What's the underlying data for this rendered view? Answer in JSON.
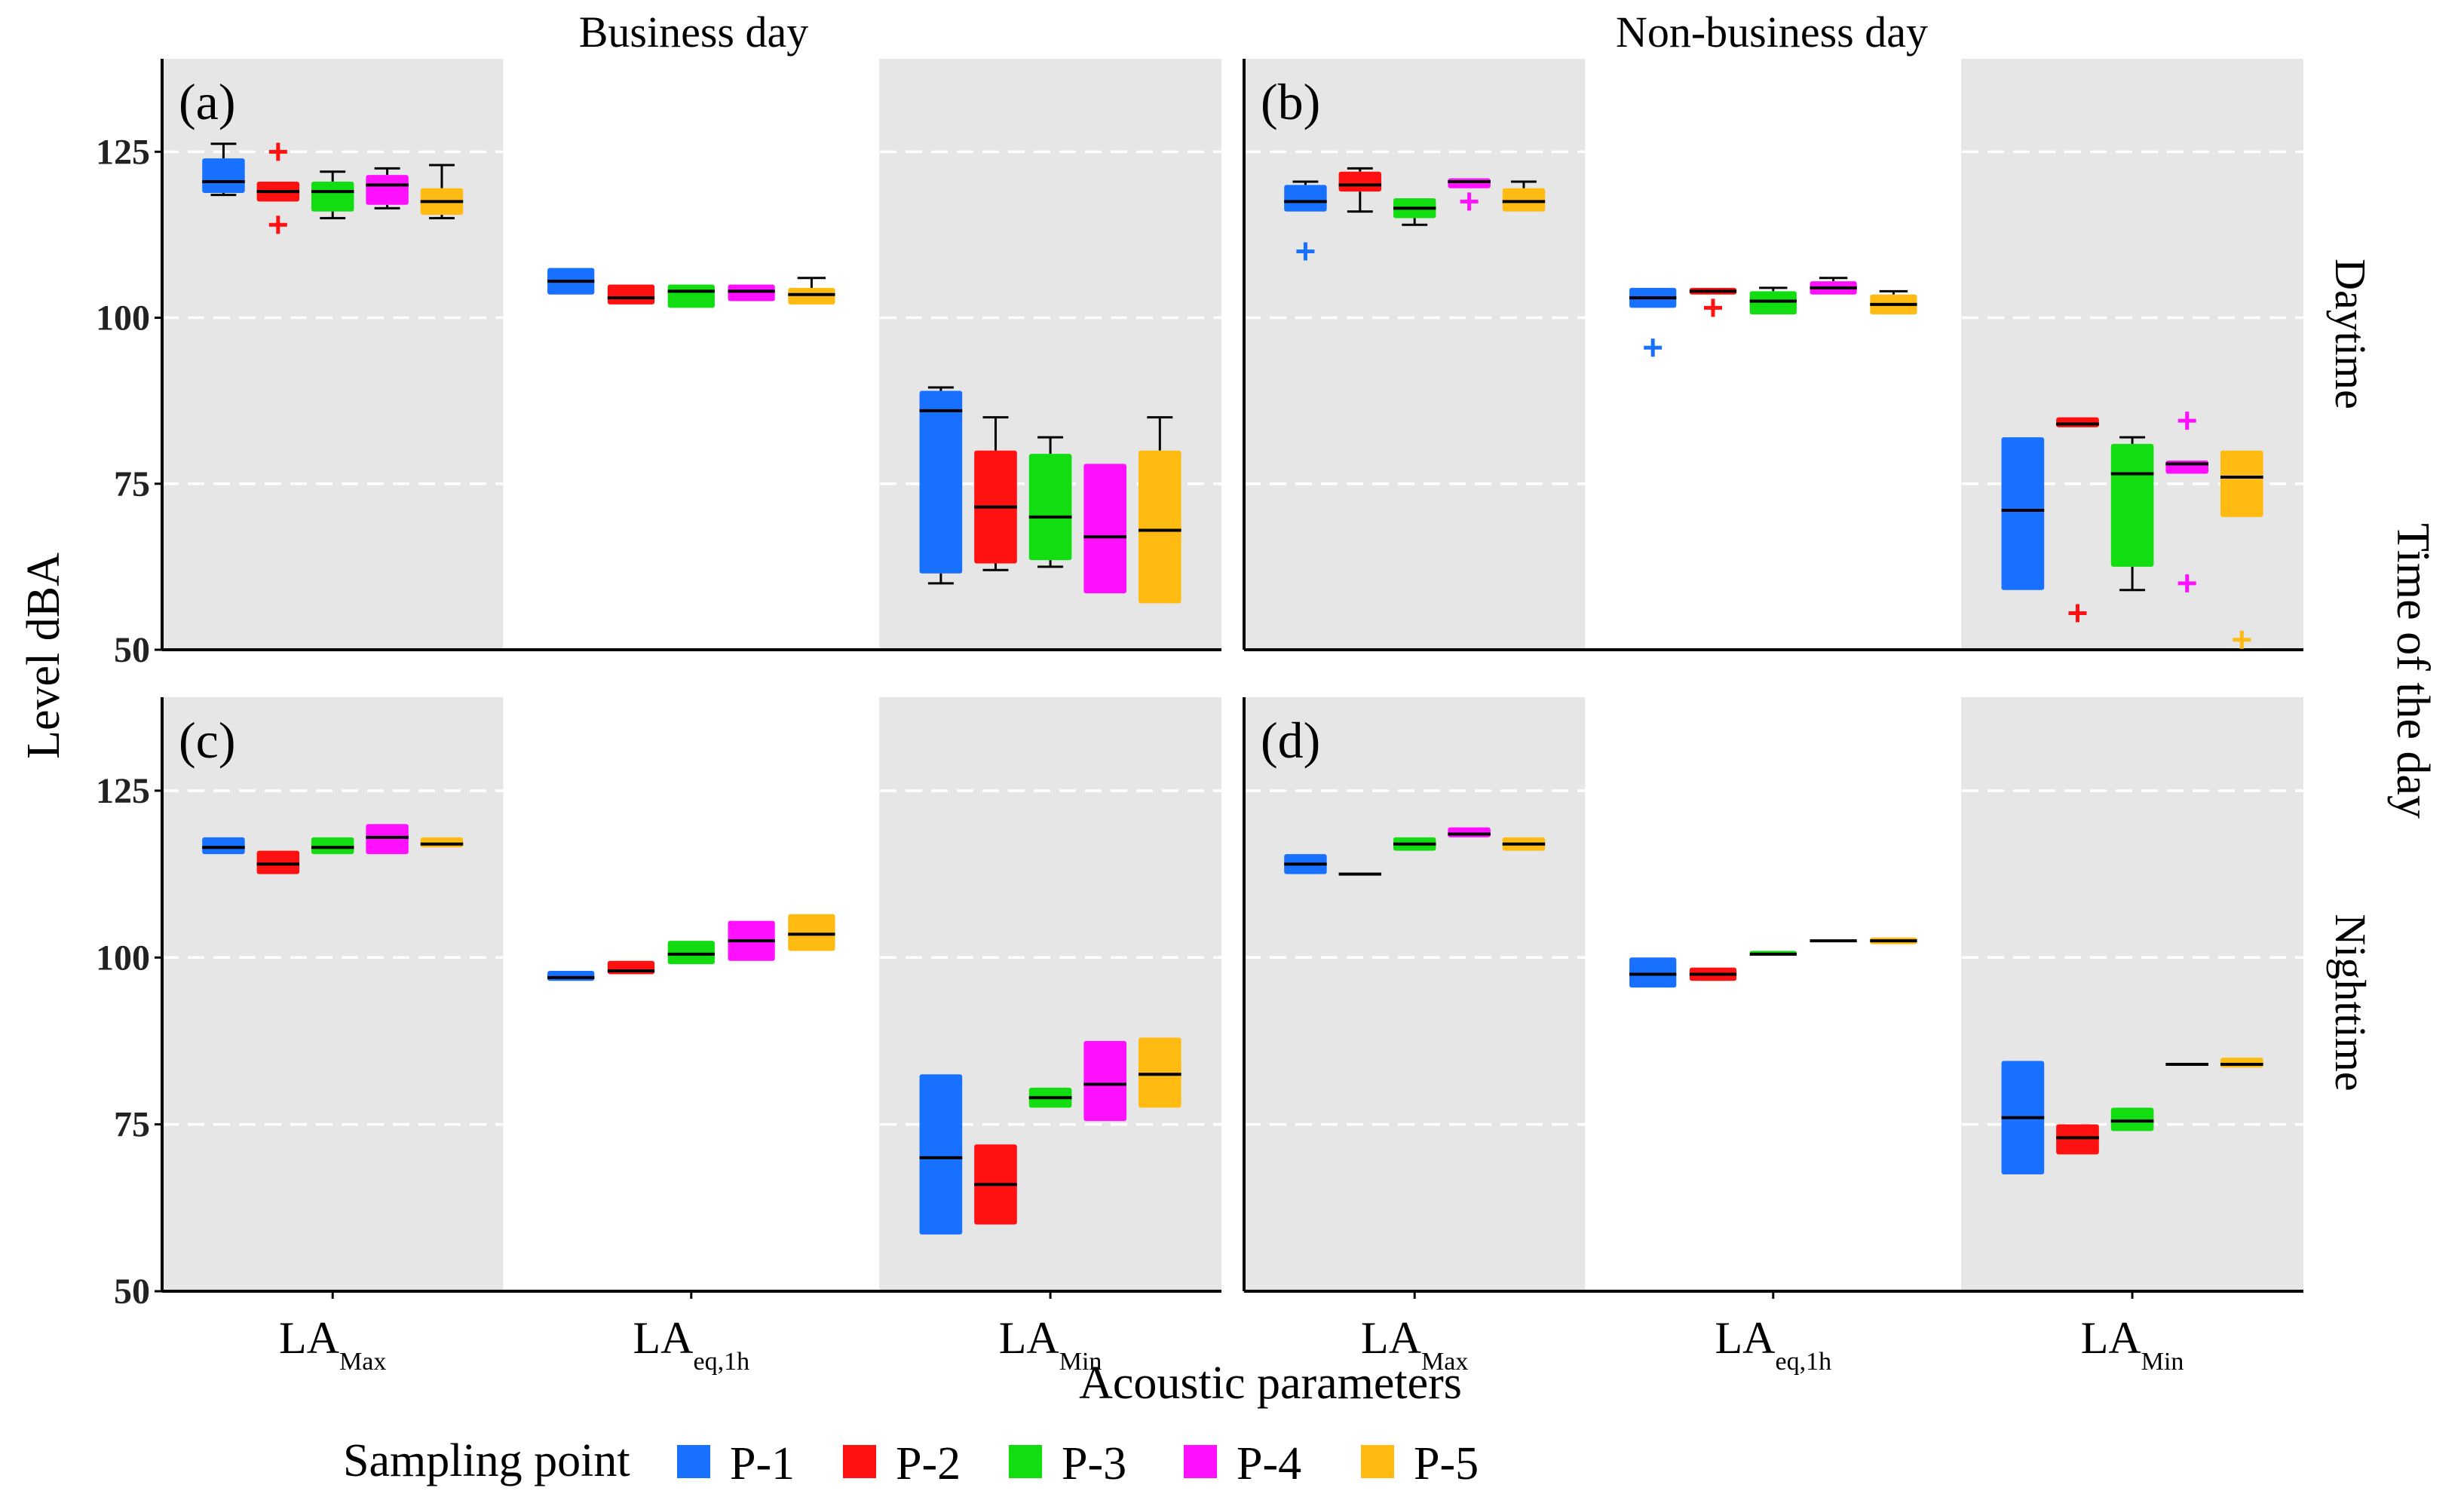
{
  "chart_data": {
    "type": "boxplot",
    "column_titles": [
      "Business day",
      "Non-business day"
    ],
    "row_titles": [
      "Daytime",
      "Nighttime"
    ],
    "strip_title": "Time of the day",
    "ylabel": "Level dBA",
    "xlabel": "Acoustic parameters",
    "y_ticks": [
      50,
      75,
      100,
      125
    ],
    "ylim": [
      50,
      139
    ],
    "categories": [
      {
        "main": "LA",
        "sub": "Max"
      },
      {
        "main": "LA",
        "sub": "eq,1h"
      },
      {
        "main": "LA",
        "sub": "Min"
      }
    ],
    "legend": {
      "title": "Sampling point",
      "items": [
        {
          "name": "P-1",
          "color": "#1770ff"
        },
        {
          "name": "P-2",
          "color": "#ff1111"
        },
        {
          "name": "P-3",
          "color": "#11dd11"
        },
        {
          "name": "P-4",
          "color": "#ff11ff"
        },
        {
          "name": "P-5",
          "color": "#ffbb11"
        }
      ]
    },
    "panels": [
      {
        "label": "(a)",
        "column": "Business day",
        "row": "Daytime",
        "groups": [
          [
            {
              "q1": 118.8,
              "median": 120.5,
              "q3": 124.0,
              "low": 118.5,
              "high": 126.2,
              "outliers": []
            },
            {
              "q1": 117.5,
              "median": 119.0,
              "q3": 120.5,
              "low": 117.5,
              "high": 120.5,
              "outliers": [
                125.0,
                114.0
              ]
            },
            {
              "q1": 116.0,
              "median": 119.0,
              "q3": 120.5,
              "low": 115.0,
              "high": 122.0,
              "outliers": []
            },
            {
              "q1": 117.0,
              "median": 120.0,
              "q3": 121.5,
              "low": 116.5,
              "high": 122.5,
              "outliers": []
            },
            {
              "q1": 115.5,
              "median": 117.5,
              "q3": 119.5,
              "low": 115.0,
              "high": 123.0,
              "outliers": []
            }
          ],
          [
            {
              "q1": 103.5,
              "median": 105.5,
              "q3": 107.5,
              "low": 103.5,
              "high": 107.5,
              "outliers": []
            },
            {
              "q1": 102.0,
              "median": 103.0,
              "q3": 105.0,
              "low": 102.0,
              "high": 105.0,
              "outliers": []
            },
            {
              "q1": 101.5,
              "median": 104.0,
              "q3": 105.0,
              "low": 101.5,
              "high": 105.0,
              "outliers": []
            },
            {
              "q1": 102.5,
              "median": 104.0,
              "q3": 105.0,
              "low": 102.5,
              "high": 105.0,
              "outliers": []
            },
            {
              "q1": 102.0,
              "median": 103.5,
              "q3": 104.5,
              "low": 102.0,
              "high": 106.0,
              "outliers": []
            }
          ],
          [
            {
              "q1": 61.5,
              "median": 86.0,
              "q3": 89.0,
              "low": 60.0,
              "high": 89.5,
              "outliers": []
            },
            {
              "q1": 63.0,
              "median": 71.5,
              "q3": 80.0,
              "low": 62.0,
              "high": 85.0,
              "outliers": []
            },
            {
              "q1": 63.5,
              "median": 70.0,
              "q3": 79.5,
              "low": 62.5,
              "high": 82.0,
              "outliers": []
            },
            {
              "q1": 58.5,
              "median": 67.0,
              "q3": 78.0,
              "low": 58.5,
              "high": 78.0,
              "outliers": []
            },
            {
              "q1": 57.0,
              "median": 68.0,
              "q3": 80.0,
              "low": 57.0,
              "high": 85.0,
              "outliers": []
            }
          ]
        ]
      },
      {
        "label": "(b)",
        "column": "Non-business day",
        "row": "Daytime",
        "groups": [
          [
            {
              "q1": 116.0,
              "median": 117.5,
              "q3": 120.0,
              "low": 116.0,
              "high": 120.5,
              "outliers": [
                110.0
              ]
            },
            {
              "q1": 119.0,
              "median": 120.0,
              "q3": 122.0,
              "low": 116.0,
              "high": 122.5,
              "outliers": []
            },
            {
              "q1": 115.0,
              "median": 116.5,
              "q3": 118.0,
              "low": 114.0,
              "high": 118.0,
              "outliers": []
            },
            {
              "q1": 119.5,
              "median": 120.5,
              "q3": 121.0,
              "low": 119.5,
              "high": 121.0,
              "outliers": [
                117.5
              ]
            },
            {
              "q1": 116.0,
              "median": 117.5,
              "q3": 119.5,
              "low": 116.0,
              "high": 120.5,
              "outliers": []
            }
          ],
          [
            {
              "q1": 101.5,
              "median": 103.0,
              "q3": 104.5,
              "low": 101.5,
              "high": 104.5,
              "outliers": [
                95.5
              ]
            },
            {
              "q1": 103.5,
              "median": 104.0,
              "q3": 104.5,
              "low": 103.5,
              "high": 104.5,
              "outliers": [
                101.5
              ]
            },
            {
              "q1": 100.5,
              "median": 102.5,
              "q3": 104.0,
              "low": 100.5,
              "high": 104.5,
              "outliers": []
            },
            {
              "q1": 103.5,
              "median": 104.5,
              "q3": 105.5,
              "low": 103.5,
              "high": 106.0,
              "outliers": []
            },
            {
              "q1": 100.5,
              "median": 102.0,
              "q3": 103.5,
              "low": 100.5,
              "high": 104.0,
              "outliers": []
            }
          ],
          [
            {
              "q1": 59.0,
              "median": 71.0,
              "q3": 82.0,
              "low": 59.0,
              "high": 82.0,
              "outliers": []
            },
            {
              "q1": 83.5,
              "median": 84.0,
              "q3": 85.0,
              "low": 83.5,
              "high": 85.0,
              "outliers": [
                55.5
              ]
            },
            {
              "q1": 62.5,
              "median": 76.5,
              "q3": 81.0,
              "low": 59.0,
              "high": 82.0,
              "outliers": []
            },
            {
              "q1": 76.5,
              "median": 78.0,
              "q3": 78.5,
              "low": 76.5,
              "high": 78.5,
              "outliers": [
                84.5,
                60.0
              ]
            },
            {
              "q1": 70.0,
              "median": 76.0,
              "q3": 80.0,
              "low": 70.0,
              "high": 80.0,
              "outliers": [
                51.5
              ]
            }
          ]
        ]
      },
      {
        "label": "(c)",
        "column": "Business day",
        "row": "Nighttime",
        "groups": [
          [
            {
              "q1": 115.5,
              "median": 116.5,
              "q3": 118.0,
              "low": 115.5,
              "high": 118.0,
              "outliers": []
            },
            {
              "q1": 112.5,
              "median": 114.0,
              "q3": 116.0,
              "low": 112.5,
              "high": 116.0,
              "outliers": []
            },
            {
              "q1": 115.5,
              "median": 116.5,
              "q3": 118.0,
              "low": 115.5,
              "high": 118.0,
              "outliers": []
            },
            {
              "q1": 115.5,
              "median": 118.0,
              "q3": 120.0,
              "low": 115.5,
              "high": 120.0,
              "outliers": []
            },
            {
              "q1": 116.5,
              "median": 117.0,
              "q3": 118.0,
              "low": 116.5,
              "high": 118.0,
              "outliers": []
            }
          ],
          [
            {
              "q1": 96.5,
              "median": 97.0,
              "q3": 98.0,
              "low": 96.5,
              "high": 98.0,
              "outliers": []
            },
            {
              "q1": 97.5,
              "median": 98.0,
              "q3": 99.5,
              "low": 97.5,
              "high": 99.5,
              "outliers": []
            },
            {
              "q1": 99.0,
              "median": 100.5,
              "q3": 102.5,
              "low": 99.0,
              "high": 102.5,
              "outliers": []
            },
            {
              "q1": 99.5,
              "median": 102.5,
              "q3": 105.5,
              "low": 99.5,
              "high": 105.5,
              "outliers": []
            },
            {
              "q1": 101.0,
              "median": 103.5,
              "q3": 106.5,
              "low": 101.0,
              "high": 106.5,
              "outliers": []
            }
          ],
          [
            {
              "q1": 58.5,
              "median": 70.0,
              "q3": 82.5,
              "low": 58.5,
              "high": 82.5,
              "outliers": []
            },
            {
              "q1": 60.0,
              "median": 66.0,
              "q3": 72.0,
              "low": 60.0,
              "high": 72.0,
              "outliers": []
            },
            {
              "q1": 77.5,
              "median": 79.0,
              "q3": 80.5,
              "low": 77.5,
              "high": 80.5,
              "outliers": []
            },
            {
              "q1": 75.5,
              "median": 81.0,
              "q3": 87.5,
              "low": 75.5,
              "high": 87.5,
              "outliers": []
            },
            {
              "q1": 77.5,
              "median": 82.5,
              "q3": 88.0,
              "low": 77.5,
              "high": 88.0,
              "outliers": []
            }
          ]
        ]
      },
      {
        "label": "(d)",
        "column": "Non-business day",
        "row": "Nighttime",
        "groups": [
          [
            {
              "q1": 112.5,
              "median": 114.0,
              "q3": 115.5,
              "low": 112.5,
              "high": 115.5,
              "outliers": []
            },
            {
              "q1": 112.5,
              "median": 112.5,
              "q3": 112.5,
              "low": 112.5,
              "high": 112.5,
              "outliers": []
            },
            {
              "q1": 116.0,
              "median": 117.0,
              "q3": 118.0,
              "low": 116.0,
              "high": 118.0,
              "outliers": []
            },
            {
              "q1": 118.0,
              "median": 118.5,
              "q3": 119.5,
              "low": 118.0,
              "high": 119.5,
              "outliers": []
            },
            {
              "q1": 116.0,
              "median": 117.0,
              "q3": 118.0,
              "low": 116.0,
              "high": 118.0,
              "outliers": []
            }
          ],
          [
            {
              "q1": 95.5,
              "median": 97.5,
              "q3": 100.0,
              "low": 95.5,
              "high": 100.0,
              "outliers": []
            },
            {
              "q1": 96.5,
              "median": 97.5,
              "q3": 98.5,
              "low": 96.5,
              "high": 98.5,
              "outliers": []
            },
            {
              "q1": 100.5,
              "median": 100.5,
              "q3": 101.0,
              "low": 100.5,
              "high": 101.0,
              "outliers": []
            },
            {
              "q1": 102.5,
              "median": 102.5,
              "q3": 102.5,
              "low": 102.5,
              "high": 102.5,
              "outliers": []
            },
            {
              "q1": 102.0,
              "median": 102.5,
              "q3": 103.0,
              "low": 102.0,
              "high": 103.0,
              "outliers": []
            }
          ],
          [
            {
              "q1": 67.5,
              "median": 76.0,
              "q3": 84.5,
              "low": 67.5,
              "high": 84.5,
              "outliers": []
            },
            {
              "q1": 70.5,
              "median": 73.0,
              "q3": 75.0,
              "low": 70.5,
              "high": 75.0,
              "outliers": []
            },
            {
              "q1": 74.0,
              "median": 75.5,
              "q3": 77.5,
              "low": 74.0,
              "high": 77.5,
              "outliers": []
            },
            {
              "q1": 84.0,
              "median": 84.0,
              "q3": 84.0,
              "low": 84.0,
              "high": 84.0,
              "outliers": []
            },
            {
              "q1": 83.5,
              "median": 84.0,
              "q3": 85.0,
              "low": 83.5,
              "high": 85.0,
              "outliers": []
            }
          ]
        ]
      }
    ]
  }
}
